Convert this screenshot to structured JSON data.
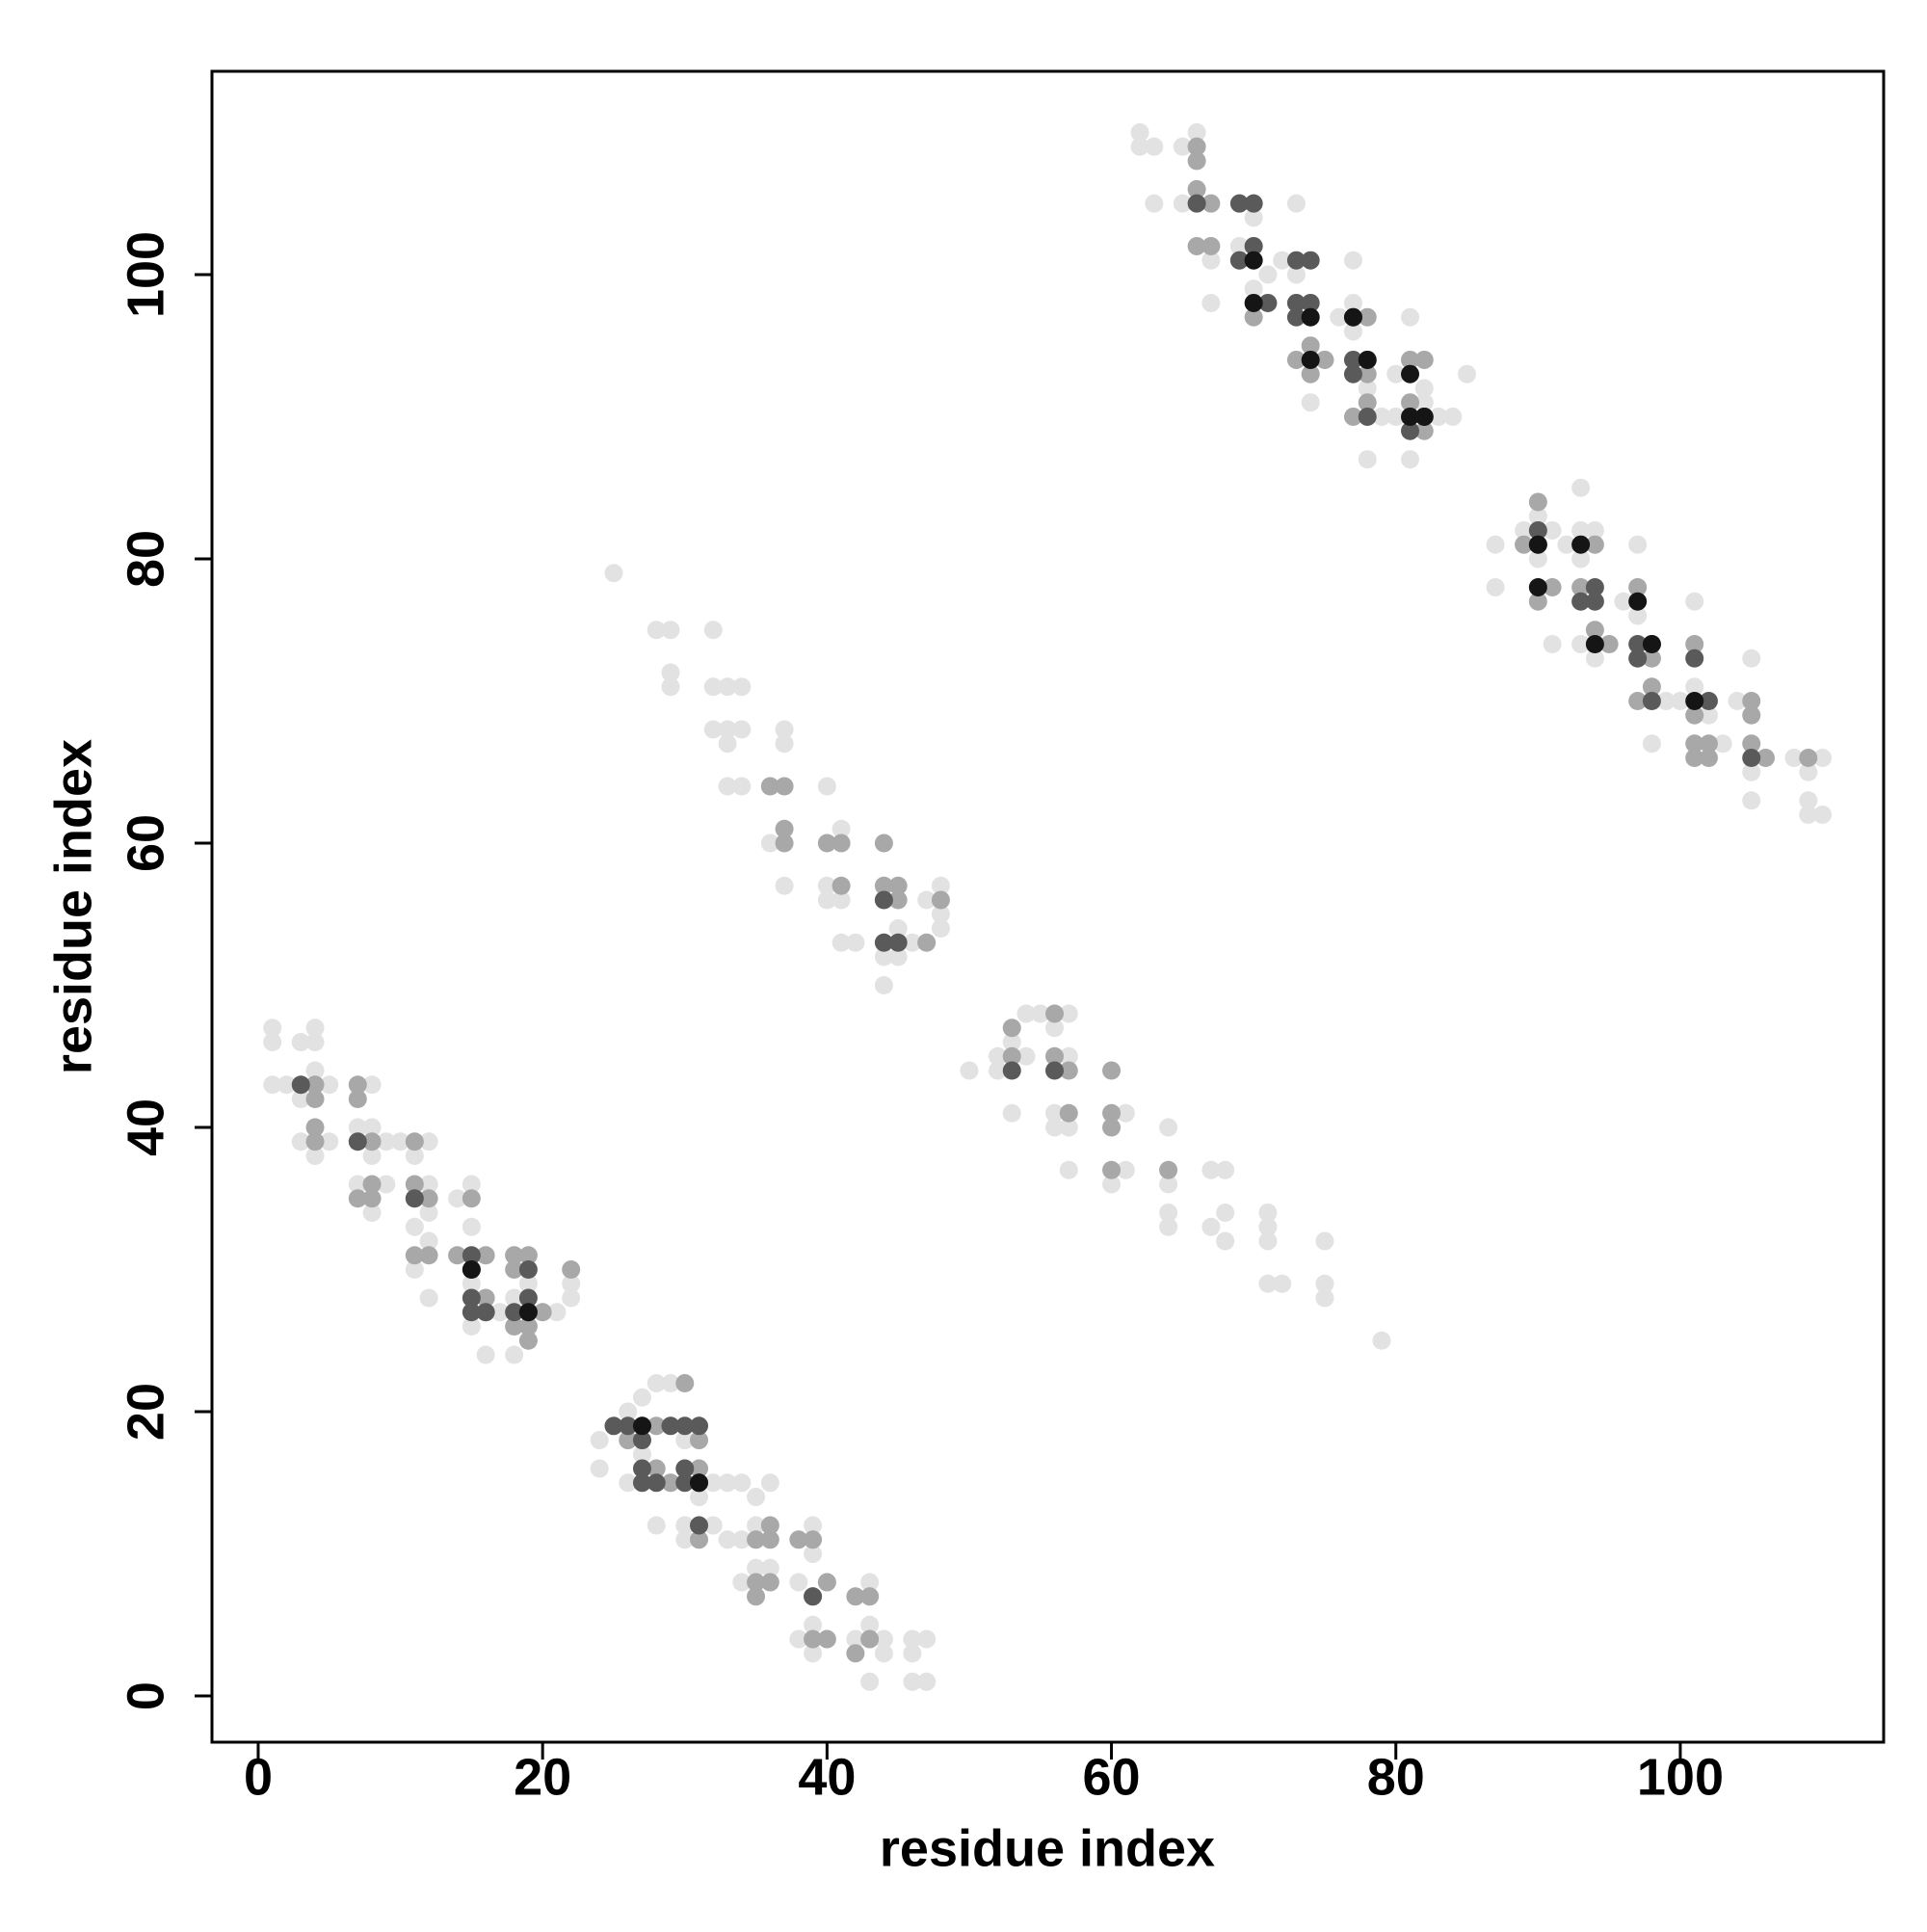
{
  "chart_data": {
    "type": "scatter",
    "xlabel": "residue index",
    "ylabel": "residue index",
    "xlim": [
      -3.25,
      114.3
    ],
    "ylim": [
      -3.25,
      114.3
    ],
    "xticks": [
      0,
      20,
      40,
      60,
      80,
      100
    ],
    "yticks": [
      0,
      20,
      40,
      60,
      80,
      100
    ],
    "grid": false,
    "series": [
      {
        "color": "#e2e2e2",
        "x": [
          1,
          1,
          1,
          2,
          3,
          4,
          4,
          4,
          3,
          5,
          3,
          4,
          5,
          8,
          7,
          8,
          8,
          7,
          9,
          8,
          9,
          10,
          12,
          11,
          12,
          12,
          11,
          12,
          12,
          11,
          14,
          15,
          15,
          15,
          15,
          16,
          18,
          17,
          18,
          18,
          19,
          20,
          21,
          22,
          22,
          24,
          24,
          26,
          27,
          28,
          29,
          26,
          27,
          28,
          29,
          30,
          31,
          32,
          33,
          34,
          35,
          36,
          32,
          33,
          34,
          35,
          34,
          35,
          36,
          38,
          38,
          39,
          39,
          39,
          39,
          40,
          42,
          43,
          43,
          43,
          44,
          44,
          46,
          46,
          46,
          47,
          47,
          30,
          30,
          25,
          28,
          29,
          29,
          29,
          32,
          32,
          33,
          34,
          32,
          33,
          34,
          33,
          34,
          36,
          37,
          37,
          36,
          37,
          40,
          40,
          40,
          41,
          41,
          42,
          44,
          44,
          45,
          45,
          46,
          47,
          48,
          48,
          48,
          41,
          33,
          50,
          52,
          52,
          53,
          54,
          54,
          55,
          56,
          57,
          57,
          56,
          57,
          57,
          60,
          61,
          61,
          64,
          64,
          64,
          64,
          67,
          68,
          67,
          68,
          68,
          71,
          71,
          71,
          71,
          72,
          75,
          75,
          75,
          79,
          53,
          56,
          62,
          62,
          63,
          63,
          65,
          65,
          66,
          67,
          67,
          69,
          69,
          70,
          70,
          70,
          71,
          73,
          73,
          74,
          74,
          76,
          77,
          77,
          77,
          79,
          80,
          80,
          81,
          81,
          82,
          82,
          83,
          84,
          85,
          78,
          78,
          75,
          72,
          87,
          87,
          89,
          90,
          90,
          91,
          91,
          92,
          93,
          93,
          93,
          94,
          93,
          94,
          96,
          97,
          97,
          97,
          98,
          99,
          100,
          101,
          101,
          102,
          104,
          105,
          105,
          105,
          108,
          109,
          109,
          110,
          110,
          109,
          103
        ],
        "y": [
          47,
          46,
          43,
          43,
          46,
          47,
          46,
          44,
          42,
          43,
          39,
          38,
          39,
          43,
          40,
          40,
          38,
          36,
          36,
          34,
          39,
          39,
          39,
          38,
          36,
          34,
          33,
          32,
          28,
          30,
          35,
          36,
          33,
          29,
          26,
          24,
          24,
          27,
          31,
          28,
          29,
          27,
          27,
          29,
          28,
          18,
          16,
          20,
          21,
          22,
          22,
          15,
          17,
          12,
          19,
          18,
          14,
          15,
          15,
          15,
          14,
          15,
          12,
          11,
          11,
          12,
          8,
          9,
          9,
          8,
          4,
          5,
          3,
          10,
          12,
          8,
          4,
          8,
          5,
          1,
          3,
          4,
          4,
          3,
          1,
          4,
          1,
          11,
          12,
          79,
          75,
          75,
          72,
          71,
          75,
          71,
          71,
          71,
          68,
          67,
          68,
          64,
          64,
          64,
          68,
          67,
          60,
          57,
          64,
          56,
          57,
          56,
          53,
          53,
          50,
          52,
          52,
          54,
          53,
          56,
          57,
          55,
          54,
          61,
          68,
          44,
          44,
          45,
          46,
          45,
          48,
          48,
          47,
          48,
          45,
          40,
          40,
          37,
          36,
          41,
          37,
          40,
          36,
          34,
          33,
          37,
          37,
          33,
          34,
          32,
          34,
          33,
          32,
          29,
          29,
          32,
          29,
          28,
          25,
          41,
          41,
          110,
          109,
          109,
          105,
          109,
          105,
          110,
          101,
          98,
          105,
          102,
          104,
          101,
          99,
          100,
          105,
          100,
          93,
          91,
          97,
          98,
          96,
          101,
          90,
          90,
          93,
          97,
          87,
          92,
          91,
          90,
          90,
          93,
          87,
          92,
          94,
          101,
          81,
          78,
          82,
          83,
          80,
          82,
          74,
          81,
          85,
          82,
          80,
          82,
          74,
          73,
          77,
          81,
          78,
          76,
          67,
          70,
          70,
          77,
          71,
          69,
          70,
          73,
          65,
          63,
          66,
          65,
          63,
          66,
          62,
          62,
          67
        ]
      },
      {
        "color": "#a8a8a8",
        "x": [
          4,
          4,
          4,
          4,
          7,
          7,
          8,
          8,
          8,
          7,
          11,
          11,
          11,
          12,
          12,
          11,
          14,
          15,
          16,
          16,
          16,
          18,
          18,
          19,
          19,
          19,
          18,
          22,
          20,
          26,
          27,
          28,
          28,
          29,
          30,
          31,
          31,
          35,
          36,
          36,
          35,
          36,
          38,
          39,
          39,
          40,
          39,
          40,
          42,
          43,
          42,
          43,
          35,
          31,
          36,
          37,
          37,
          37,
          40,
          41,
          41,
          44,
          44,
          45,
          45,
          47,
          48,
          44,
          53,
          53,
          56,
          56,
          57,
          57,
          60,
          60,
          60,
          60,
          64,
          66,
          66,
          66,
          66,
          67,
          67,
          69,
          70,
          73,
          74,
          74,
          75,
          77,
          78,
          78,
          81,
          82,
          82,
          78,
          81,
          89,
          90,
          90,
          91,
          93,
          94,
          94,
          94,
          95,
          97,
          97,
          98,
          98,
          101,
          101,
          101,
          102,
          102,
          105,
          105,
          105,
          106,
          109,
          101
        ],
        "y": [
          43,
          42,
          40,
          39,
          42,
          43,
          39,
          36,
          35,
          35,
          39,
          35,
          36,
          35,
          31,
          31,
          31,
          35,
          31,
          28,
          27,
          31,
          30,
          31,
          26,
          25,
          26,
          30,
          27,
          18,
          19,
          19,
          16,
          15,
          22,
          18,
          16,
          11,
          12,
          11,
          8,
          8,
          11,
          11,
          7,
          8,
          4,
          4,
          7,
          7,
          3,
          4,
          7,
          11,
          64,
          64,
          61,
          60,
          60,
          60,
          57,
          60,
          57,
          57,
          56,
          53,
          56,
          56,
          47,
          45,
          48,
          45,
          44,
          41,
          44,
          41,
          40,
          37,
          37,
          109,
          108,
          106,
          102,
          102,
          105,
          101,
          97,
          94,
          95,
          93,
          94,
          90,
          97,
          91,
          94,
          94,
          89,
          93,
          91,
          81,
          84,
          77,
          78,
          78,
          81,
          75,
          74,
          74,
          78,
          70,
          71,
          73,
          74,
          69,
          67,
          67,
          66,
          70,
          69,
          67,
          66,
          66,
          66
        ]
      },
      {
        "color": "#5a5a5a",
        "x": [
          3,
          7,
          11,
          15,
          15,
          15,
          15,
          16,
          18,
          19,
          19,
          19,
          25,
          26,
          27,
          27,
          27,
          28,
          29,
          30,
          31,
          30,
          30,
          31,
          31,
          39,
          44,
          44,
          45,
          53,
          56,
          66,
          69,
          70,
          69,
          70,
          71,
          73,
          74,
          73,
          73,
          74,
          77,
          77,
          78,
          78,
          82,
          81,
          77,
          90,
          90,
          93,
          94,
          94,
          97,
          98,
          97,
          98,
          101,
          102,
          105
        ],
        "y": [
          43,
          39,
          35,
          31,
          30,
          28,
          27,
          27,
          27,
          30,
          28,
          27,
          19,
          19,
          18,
          16,
          15,
          15,
          19,
          19,
          19,
          16,
          15,
          15,
          12,
          7,
          56,
          53,
          53,
          44,
          44,
          105,
          105,
          105,
          101,
          102,
          98,
          101,
          101,
          98,
          97,
          98,
          94,
          93,
          94,
          90,
          90,
          89,
          97,
          81,
          82,
          77,
          78,
          77,
          73,
          74,
          74,
          70,
          73,
          70,
          66
        ]
      },
      {
        "color": "#151515",
        "x": [
          19,
          15,
          27,
          31,
          70,
          70,
          74,
          74,
          77,
          78,
          81,
          81,
          82,
          90,
          93,
          90,
          94,
          97,
          98,
          101
        ],
        "y": [
          27,
          30,
          19,
          15,
          101,
          98,
          97,
          94,
          97,
          94,
          93,
          90,
          90,
          81,
          81,
          78,
          74,
          77,
          74,
          70
        ]
      }
    ]
  }
}
